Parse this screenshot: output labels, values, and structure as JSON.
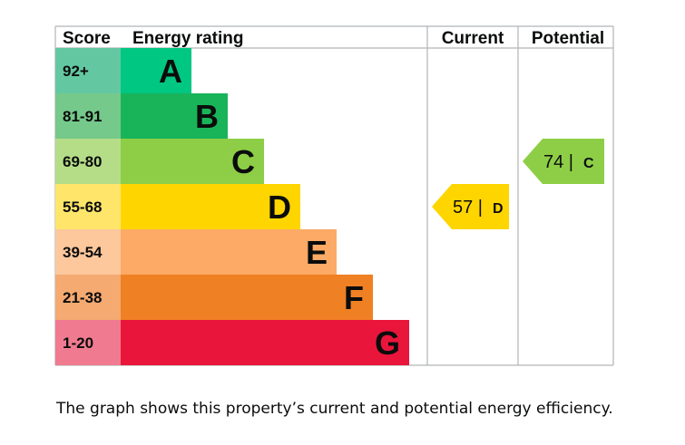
{
  "headers": {
    "score": "Score",
    "energy_rating": "Energy rating",
    "current": "Current",
    "potential": "Potential"
  },
  "caption": "The graph shows this property’s current and potential energy efficiency.",
  "chart_data": {
    "type": "bar",
    "title": "",
    "bands": [
      {
        "letter": "A",
        "range": "92+",
        "bar_color": "#00c781",
        "score_color": "#63c8a2"
      },
      {
        "letter": "B",
        "range": "81-91",
        "bar_color": "#19b459",
        "score_color": "#75c98b"
      },
      {
        "letter": "C",
        "range": "69-80",
        "bar_color": "#8dce46",
        "score_color": "#b5dd87"
      },
      {
        "letter": "D",
        "range": "55-68",
        "bar_color": "#ffd500",
        "score_color": "#ffe66b"
      },
      {
        "letter": "E",
        "range": "39-54",
        "bar_color": "#fcaa65",
        "score_color": "#fcc89c"
      },
      {
        "letter": "F",
        "range": "21-38",
        "bar_color": "#ef8023",
        "score_color": "#f4aa70"
      },
      {
        "letter": "G",
        "range": "1-20",
        "bar_color": "#e9153b",
        "score_color": "#f07b90"
      }
    ],
    "current": {
      "value": 57,
      "rating": "D",
      "label": "57 |",
      "color": "#ffd500"
    },
    "potential": {
      "value": 74,
      "rating": "C",
      "label": "74 |",
      "color": "#8dce46"
    }
  }
}
